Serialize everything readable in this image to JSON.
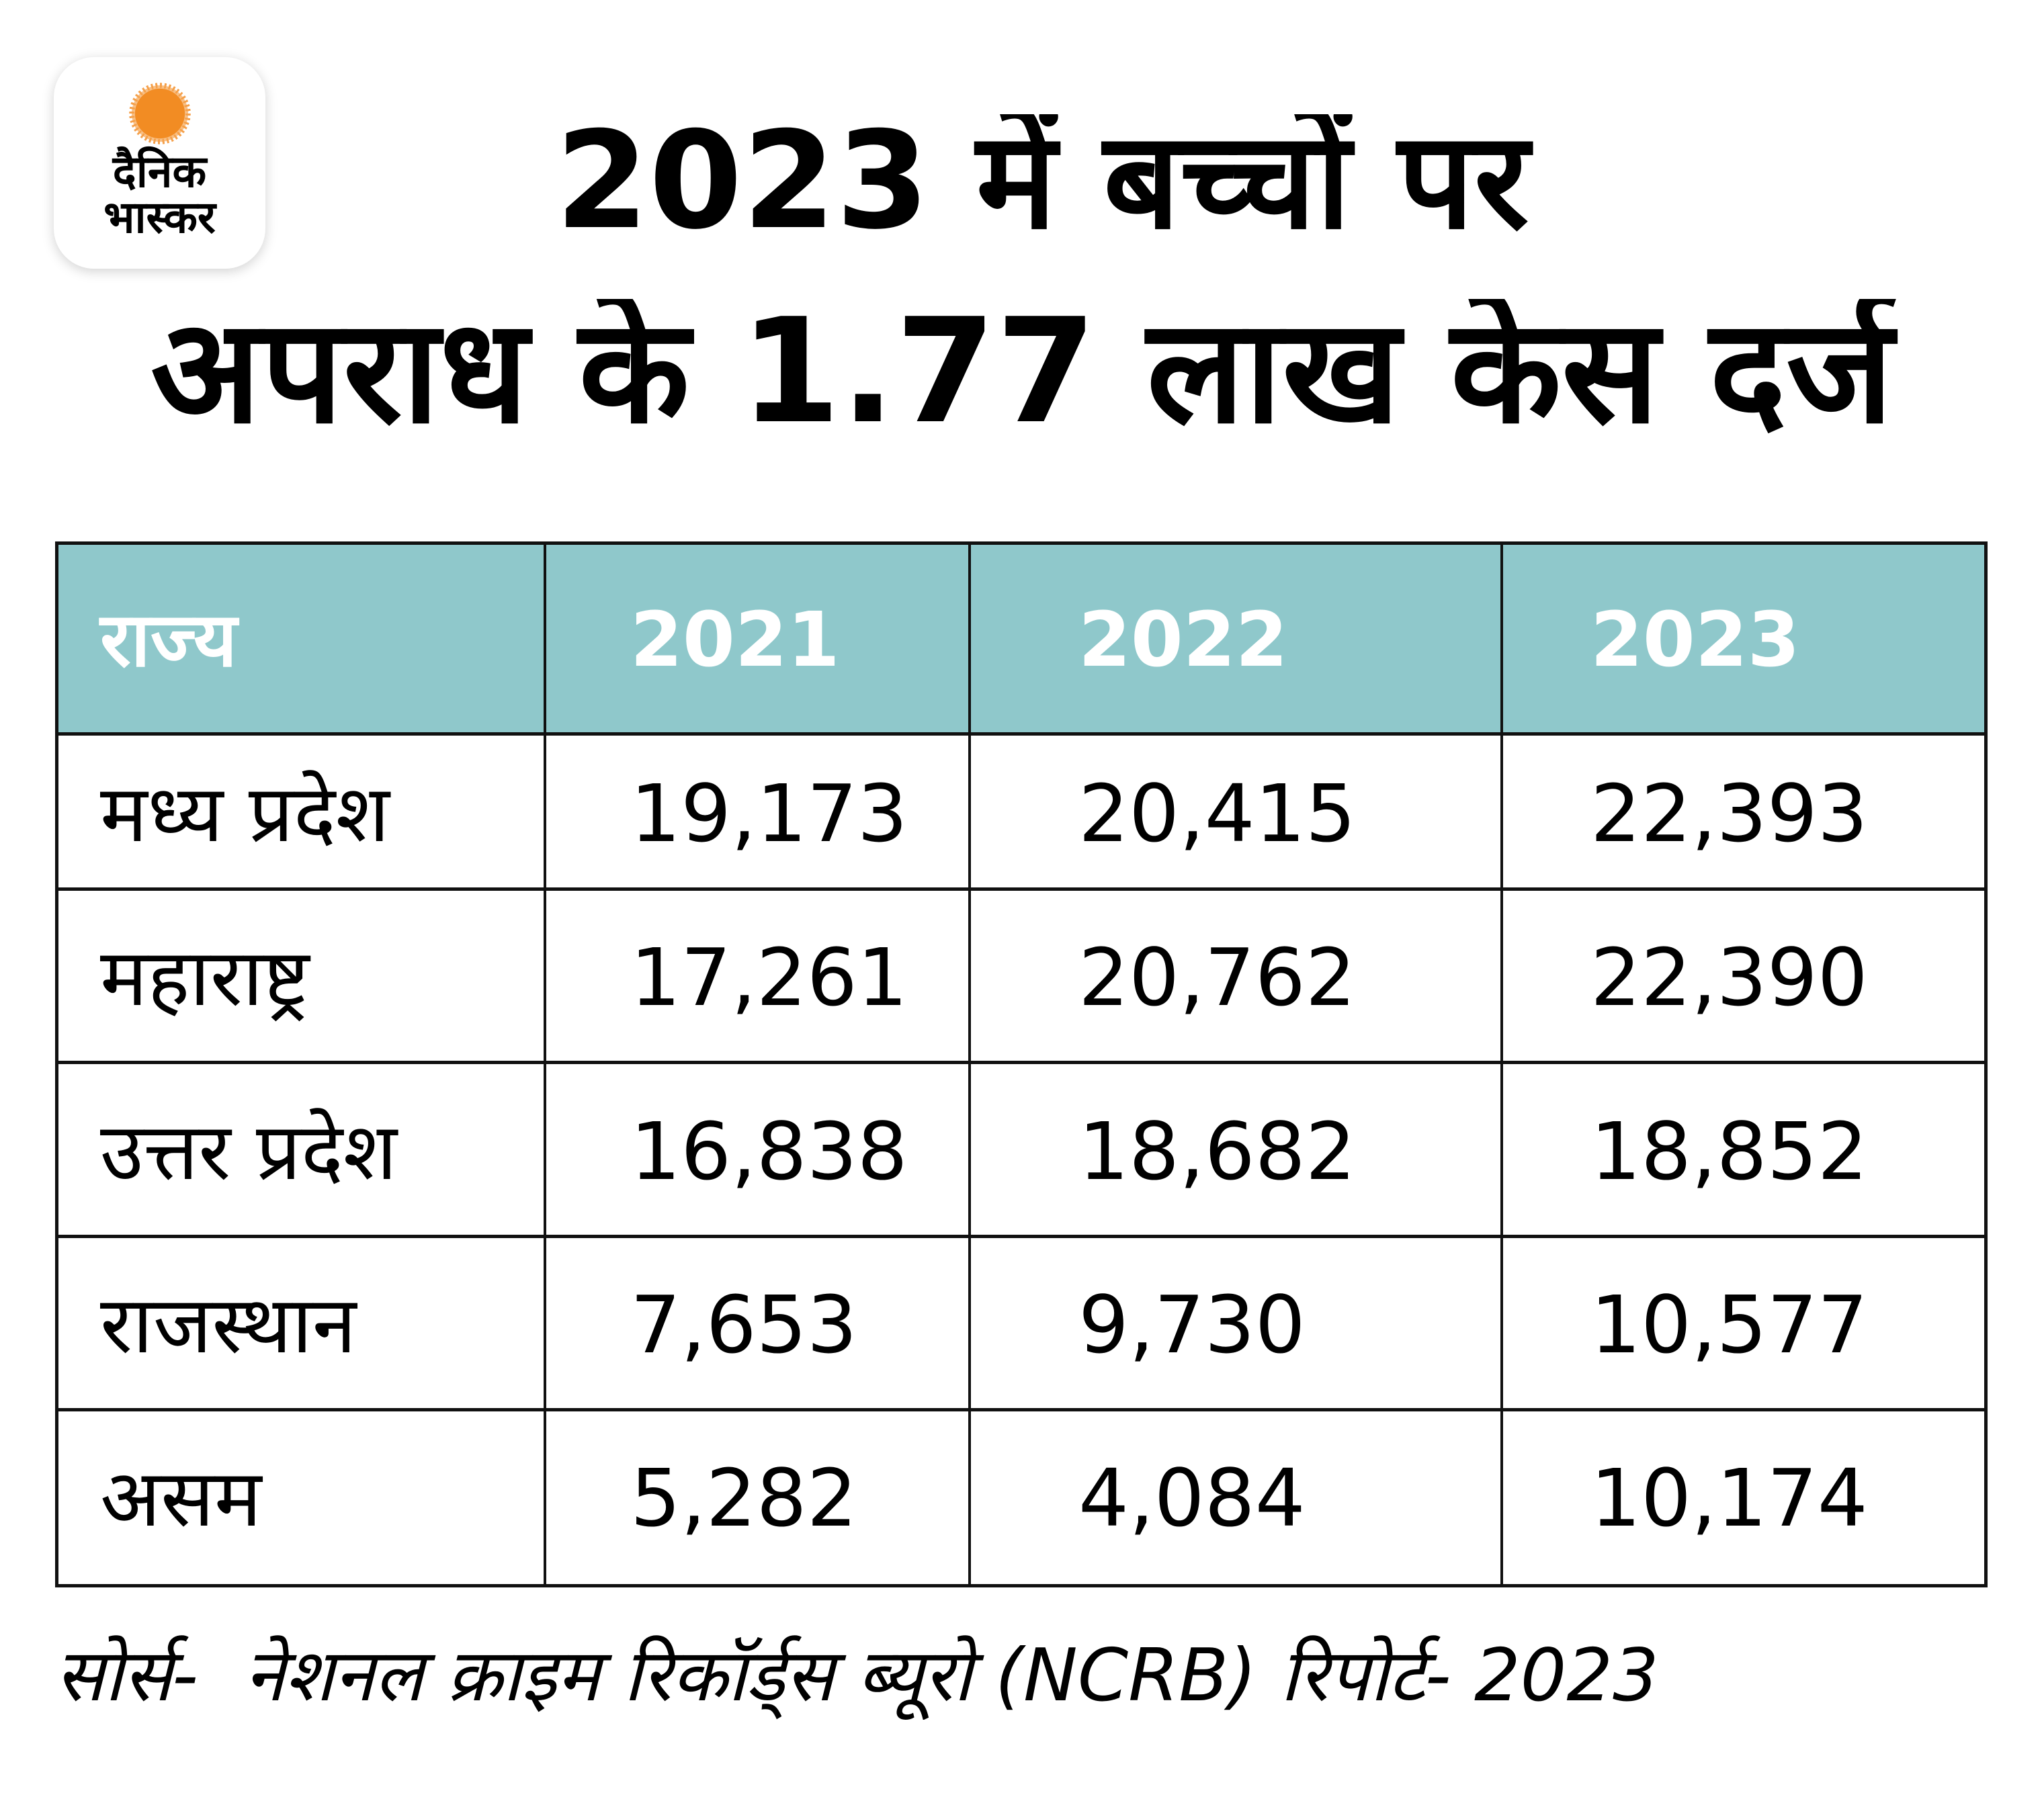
{
  "logo": {
    "name": "dainik-bhaskar-logo",
    "line1": "दैनिक",
    "line2": "भास्कर",
    "sun_color": "#F28C23"
  },
  "title": {
    "line1": "2023 में बच्चों पर",
    "line2": "अपराध के 1.77 लाख केस दर्ज"
  },
  "table": {
    "header_color": "#8FC8CB",
    "columns": [
      "राज्य",
      "2021",
      "2022",
      "2023"
    ],
    "rows": [
      {
        "state": "मध्य प्रदेश",
        "y2021": "19,173",
        "y2022": "20,415",
        "y2023": "22,393"
      },
      {
        "state": "महाराष्ट्र",
        "y2021": "17,261",
        "y2022": "20,762",
        "y2023": "22,390"
      },
      {
        "state": "उत्तर प्रदेश",
        "y2021": "16,838",
        "y2022": "18,682",
        "y2023": "18,852"
      },
      {
        "state": "राजस्थान",
        "y2021": "7,653",
        "y2022": "9,730",
        "y2023": "10,577"
      },
      {
        "state": "असम",
        "y2021": "5,282",
        "y2022": "4,084",
        "y2023": "10,174"
      }
    ]
  },
  "source": "सोर्स-  नेशनल क्राइम रिकॉर्ड्स ब्यूरो (NCRB) रिपोर्ट- 2023"
}
